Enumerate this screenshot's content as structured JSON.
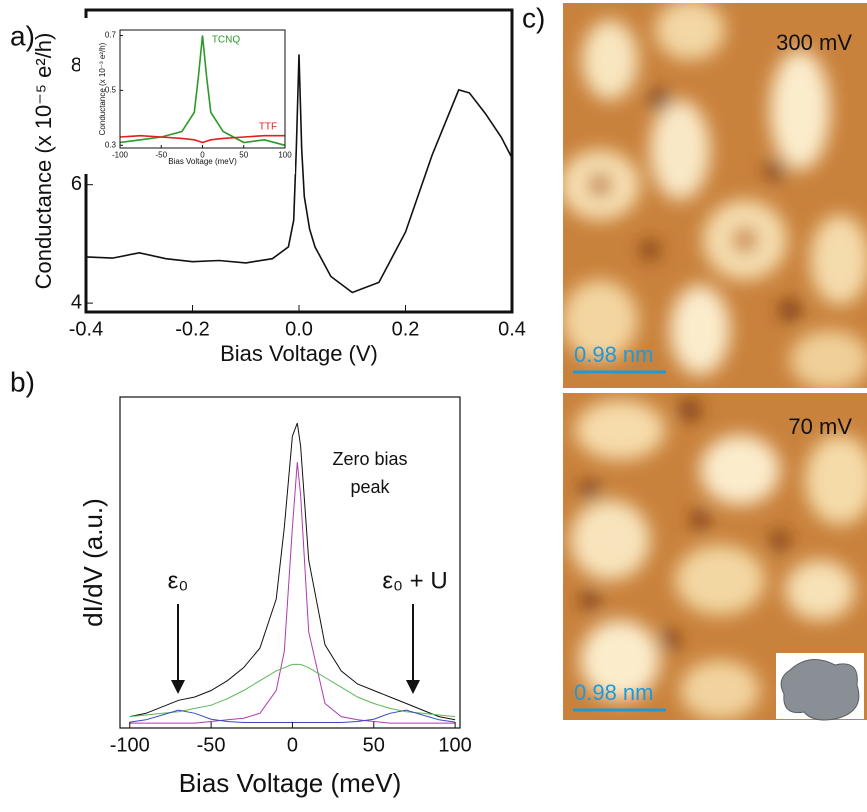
{
  "panel_labels": [
    "a)",
    "b)",
    "c)"
  ],
  "images": [
    {
      "label": "300 mV",
      "scale_bar": "0.98 nm"
    },
    {
      "label": "70 mV",
      "scale_bar": "0.98 nm"
    }
  ],
  "chart_data": [
    {
      "type": "line",
      "x_label": "Bias Voltage (V)",
      "y_label": "Conductance (x 10⁻⁵ e²/h)",
      "x": [
        -0.4,
        -0.35,
        -0.3,
        -0.25,
        -0.2,
        -0.15,
        -0.1,
        -0.05,
        -0.02,
        -0.01,
        -0.005,
        0,
        0.005,
        0.01,
        0.02,
        0.03,
        0.06,
        0.1,
        0.15,
        0.2,
        0.25,
        0.3,
        0.32,
        0.35,
        0.38,
        0.4
      ],
      "series": [
        {
          "color": "#111111",
          "values": [
            4.78,
            4.76,
            4.85,
            4.75,
            4.7,
            4.72,
            4.68,
            4.75,
            4.95,
            5.4,
            6.6,
            8.2,
            6.6,
            5.8,
            5.25,
            4.95,
            4.45,
            4.18,
            4.35,
            5.2,
            6.5,
            7.6,
            7.55,
            7.2,
            6.8,
            6.45
          ]
        }
      ],
      "xlim": [
        -0.4,
        0.4
      ],
      "ylim": [
        3.85,
        8.95
      ],
      "xticks": [
        -0.4,
        -0.2,
        {
          "value": 0,
          "label": "0.0"
        },
        0.2,
        0.4
      ],
      "yticks": [
        4,
        6,
        8
      ]
    },
    {
      "type": "line",
      "x_label": "Bias Voltage (meV)",
      "y_label": "Conductance (x 10⁻³ e²/h)",
      "x": [
        -100,
        -75,
        -50,
        -25,
        -10,
        -5,
        0,
        5,
        10,
        25,
        50,
        75,
        100
      ],
      "series": [
        {
          "name": "TCNQ",
          "color": "#2a9a2a",
          "values": [
            0.31,
            0.32,
            0.33,
            0.35,
            0.42,
            0.55,
            0.7,
            0.55,
            0.42,
            0.35,
            0.31,
            0.32,
            0.3
          ]
        },
        {
          "name": "TTF",
          "color": "#e02020",
          "values": [
            0.33,
            0.335,
            0.33,
            0.325,
            0.32,
            0.315,
            0.31,
            0.315,
            0.32,
            0.325,
            0.33,
            0.335,
            0.335
          ]
        }
      ],
      "xlim": [
        -100,
        100
      ],
      "ylim": [
        0.29,
        0.72
      ],
      "xticks": [
        -100,
        -50,
        0,
        50,
        100
      ],
      "yticks": [
        0.3,
        0.5,
        0.7
      ]
    },
    {
      "type": "line",
      "x_label": "Bias Voltage (meV)",
      "y_label": "dI/dV (a.u.)",
      "annotations": [
        "Zero bias",
        "peak",
        "ε₀",
        "ε₀ + U"
      ],
      "x": [
        -100,
        -90,
        -80,
        -70,
        -60,
        -50,
        -40,
        -30,
        -20,
        -10,
        -5,
        0,
        3,
        5,
        10,
        20,
        30,
        40,
        50,
        60,
        70,
        80,
        90,
        100
      ],
      "series": [
        {
          "color": "#111111",
          "values": [
            0.02,
            0.03,
            0.05,
            0.07,
            0.08,
            0.1,
            0.13,
            0.17,
            0.23,
            0.38,
            0.6,
            0.88,
            0.92,
            0.85,
            0.5,
            0.24,
            0.16,
            0.12,
            0.1,
            0.08,
            0.06,
            0.04,
            0.02,
            0.01
          ]
        },
        {
          "color": "#b03ab0",
          "values": [
            0,
            0,
            0,
            0,
            0,
            0.005,
            0.01,
            0.015,
            0.03,
            0.1,
            0.22,
            0.6,
            0.8,
            0.7,
            0.28,
            0.06,
            0.02,
            0.01,
            0.005,
            0,
            0,
            0,
            0,
            0
          ]
        },
        {
          "color": "#5cb85c",
          "values": [
            0.02,
            0.025,
            0.03,
            0.035,
            0.045,
            0.055,
            0.075,
            0.1,
            0.13,
            0.16,
            0.17,
            0.18,
            0.18,
            0.18,
            0.17,
            0.14,
            0.11,
            0.08,
            0.06,
            0.045,
            0.035,
            0.03,
            0.025,
            0.02
          ]
        },
        {
          "color": "#3a4ac0",
          "values": [
            0.003,
            0.01,
            0.025,
            0.04,
            0.03,
            0.012,
            0.005,
            0.002,
            0.002,
            0.002,
            0.002,
            0.002,
            0.002,
            0.002,
            0.002,
            0.002,
            0.002,
            0.005,
            0.012,
            0.03,
            0.04,
            0.025,
            0.01,
            0.003
          ]
        }
      ],
      "xlim": [
        -106,
        103
      ],
      "ylim": [
        -0.015,
        1.0
      ],
      "xticks": [
        -100,
        -50,
        0,
        50,
        100
      ]
    }
  ]
}
